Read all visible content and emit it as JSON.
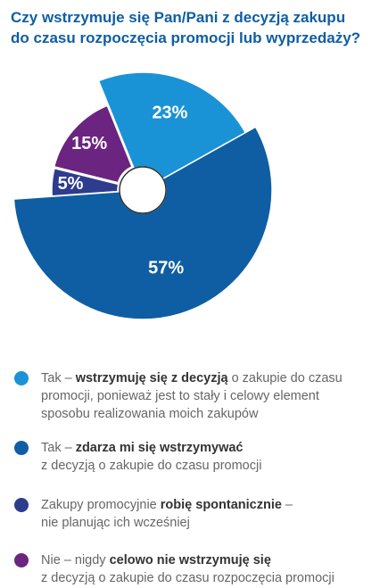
{
  "title": {
    "line1": "Czy wstrzymuje się Pan/Pani z decyzją zakupu",
    "line2": "do czasu rozpoczęcia promocji lub wyprzedaży?"
  },
  "colors": {
    "title": "#0f5ea3",
    "light_blue": "#1a92d6",
    "dark_blue": "#0f5ea3",
    "indigo": "#2e3c8e",
    "purple": "#6b2480"
  },
  "chart_data": {
    "type": "pie",
    "style": "donut with exploded segments",
    "slices": [
      {
        "label": "23%",
        "value": 23,
        "color": "#1a92d6"
      },
      {
        "label": "57%",
        "value": 57,
        "color": "#0f5ea3"
      },
      {
        "label": "5%",
        "value": 5,
        "color": "#2e3c8e"
      },
      {
        "label": "15%",
        "value": 15,
        "color": "#6b2480"
      }
    ]
  },
  "legend": [
    {
      "color": "#1a92d6",
      "line1_pre": "Tak – ",
      "line1_bold": "wstrzymuję się z decyzją",
      "line1_post": " o zakupie do czasu",
      "line2": "promocji, ponieważ jest to stały i celowy element",
      "line3": "sposobu realizowania moich zakupów"
    },
    {
      "color": "#0f5ea3",
      "line1_pre": "Tak – ",
      "line1_bold": "zdarza mi się wstrzymywać",
      "line1_post": "",
      "line2": "z decyzją o zakupie do czasu promocji",
      "line3": ""
    },
    {
      "color": "#2e3c8e",
      "line1_pre": "Zakupy promocyjnie ",
      "line1_bold": "robię spontanicznie",
      "line1_post": " –",
      "line2": "nie planując ich wcześniej",
      "line3": ""
    },
    {
      "color": "#6b2480",
      "line1_pre": "Nie – nigdy ",
      "line1_bold": "celowo nie wstrzymuję się",
      "line1_post": "",
      "line2": "z decyzją o zakupie do czasu rozpoczęcia promocji",
      "line3": ""
    }
  ]
}
